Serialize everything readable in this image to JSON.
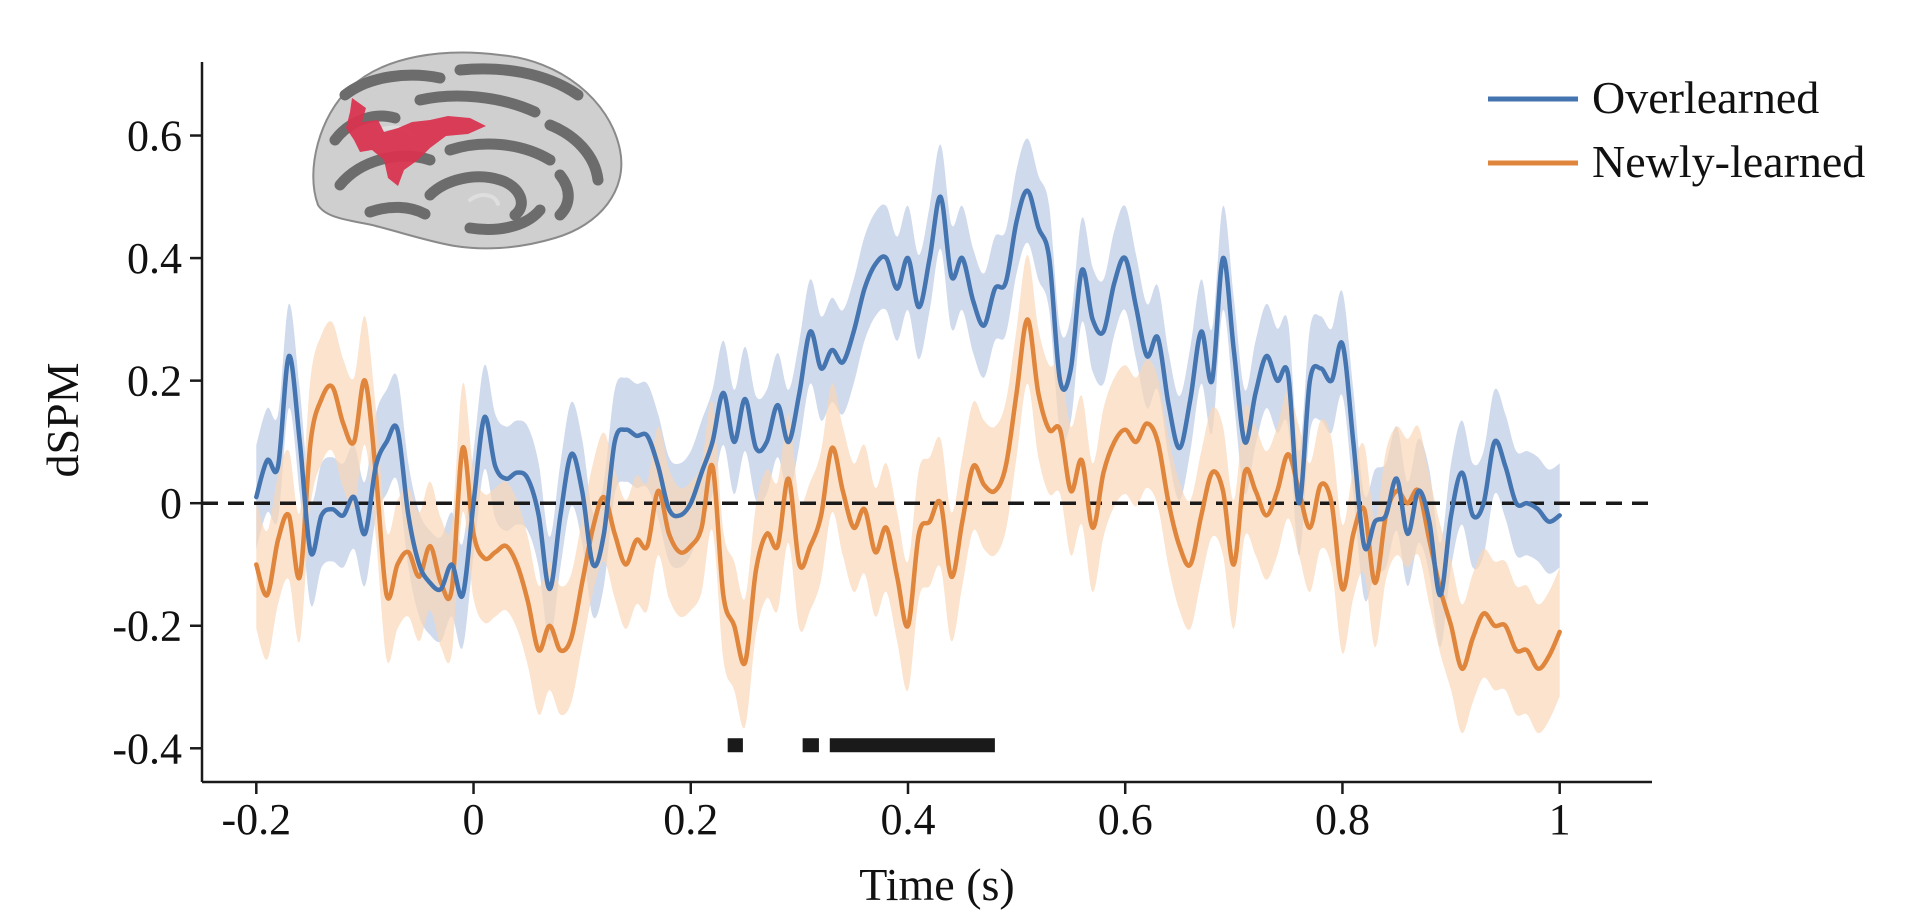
{
  "chart_data": {
    "type": "line",
    "title": "",
    "xlabel": "Time (s)",
    "ylabel": "dSPM",
    "xlim": [
      -0.25,
      1.085
    ],
    "ylim": [
      -0.455,
      0.72
    ],
    "x_ticks": [
      -0.2,
      0,
      0.2,
      0.4,
      0.6,
      0.8,
      1
    ],
    "x_tick_labels": [
      "-0.2",
      "0",
      "0.2",
      "0.4",
      "0.6",
      "0.8",
      "1"
    ],
    "y_ticks": [
      -0.4,
      -0.2,
      0,
      0.2,
      0.4,
      0.6
    ],
    "y_tick_labels": [
      "-0.4",
      "-0.2",
      "0",
      "0.2",
      "0.4",
      "0.6"
    ],
    "legend_position": "top-right",
    "reference_line": {
      "y": 0,
      "style": "dashed",
      "color": "#1a1a1a"
    },
    "series": [
      {
        "name": "Overlearned",
        "color": "#4475b0",
        "band_color": "#c8d3ea",
        "band_halfwidth": 0.085,
        "points": [
          [
            -0.2,
            0.01
          ],
          [
            -0.19,
            0.07
          ],
          [
            -0.18,
            0.06
          ],
          [
            -0.17,
            0.24
          ],
          [
            -0.16,
            0.1
          ],
          [
            -0.15,
            -0.08
          ],
          [
            -0.14,
            -0.02
          ],
          [
            -0.13,
            -0.01
          ],
          [
            -0.12,
            -0.02
          ],
          [
            -0.11,
            0.01
          ],
          [
            -0.1,
            -0.05
          ],
          [
            -0.09,
            0.06
          ],
          [
            -0.08,
            0.1
          ],
          [
            -0.07,
            0.12
          ],
          [
            -0.06,
            -0.02
          ],
          [
            -0.05,
            -0.1
          ],
          [
            -0.04,
            -0.13
          ],
          [
            -0.03,
            -0.14
          ],
          [
            -0.02,
            -0.1
          ],
          [
            -0.01,
            -0.15
          ],
          [
            0.0,
            0.0
          ],
          [
            0.01,
            0.14
          ],
          [
            0.02,
            0.06
          ],
          [
            0.03,
            0.04
          ],
          [
            0.04,
            0.05
          ],
          [
            0.05,
            0.04
          ],
          [
            0.06,
            -0.02
          ],
          [
            0.07,
            -0.14
          ],
          [
            0.08,
            -0.02
          ],
          [
            0.09,
            0.08
          ],
          [
            0.1,
            0.02
          ],
          [
            0.11,
            -0.1
          ],
          [
            0.12,
            -0.05
          ],
          [
            0.13,
            0.1
          ],
          [
            0.14,
            0.12
          ],
          [
            0.15,
            0.11
          ],
          [
            0.16,
            0.11
          ],
          [
            0.17,
            0.06
          ],
          [
            0.18,
            -0.01
          ],
          [
            0.19,
            -0.02
          ],
          [
            0.2,
            0.0
          ],
          [
            0.21,
            0.05
          ],
          [
            0.22,
            0.1
          ],
          [
            0.23,
            0.18
          ],
          [
            0.24,
            0.1
          ],
          [
            0.25,
            0.17
          ],
          [
            0.26,
            0.09
          ],
          [
            0.27,
            0.1
          ],
          [
            0.28,
            0.16
          ],
          [
            0.29,
            0.1
          ],
          [
            0.3,
            0.18
          ],
          [
            0.31,
            0.28
          ],
          [
            0.32,
            0.22
          ],
          [
            0.33,
            0.25
          ],
          [
            0.34,
            0.23
          ],
          [
            0.35,
            0.28
          ],
          [
            0.36,
            0.35
          ],
          [
            0.37,
            0.39
          ],
          [
            0.38,
            0.4
          ],
          [
            0.39,
            0.35
          ],
          [
            0.4,
            0.4
          ],
          [
            0.41,
            0.32
          ],
          [
            0.42,
            0.4
          ],
          [
            0.43,
            0.5
          ],
          [
            0.44,
            0.37
          ],
          [
            0.45,
            0.4
          ],
          [
            0.46,
            0.33
          ],
          [
            0.47,
            0.29
          ],
          [
            0.48,
            0.35
          ],
          [
            0.49,
            0.36
          ],
          [
            0.5,
            0.46
          ],
          [
            0.51,
            0.51
          ],
          [
            0.52,
            0.45
          ],
          [
            0.53,
            0.4
          ],
          [
            0.54,
            0.2
          ],
          [
            0.55,
            0.22
          ],
          [
            0.56,
            0.38
          ],
          [
            0.57,
            0.3
          ],
          [
            0.58,
            0.28
          ],
          [
            0.59,
            0.36
          ],
          [
            0.6,
            0.4
          ],
          [
            0.61,
            0.32
          ],
          [
            0.62,
            0.24
          ],
          [
            0.63,
            0.27
          ],
          [
            0.64,
            0.16
          ],
          [
            0.65,
            0.09
          ],
          [
            0.66,
            0.17
          ],
          [
            0.67,
            0.28
          ],
          [
            0.68,
            0.2
          ],
          [
            0.69,
            0.4
          ],
          [
            0.7,
            0.25
          ],
          [
            0.71,
            0.1
          ],
          [
            0.72,
            0.18
          ],
          [
            0.73,
            0.24
          ],
          [
            0.74,
            0.2
          ],
          [
            0.75,
            0.21
          ],
          [
            0.76,
            0.0
          ],
          [
            0.77,
            0.2
          ],
          [
            0.78,
            0.22
          ],
          [
            0.79,
            0.2
          ],
          [
            0.8,
            0.26
          ],
          [
            0.81,
            0.1
          ],
          [
            0.82,
            -0.07
          ],
          [
            0.83,
            -0.03
          ],
          [
            0.84,
            -0.02
          ],
          [
            0.85,
            0.04
          ],
          [
            0.86,
            -0.05
          ],
          [
            0.87,
            0.02
          ],
          [
            0.88,
            -0.03
          ],
          [
            0.89,
            -0.15
          ],
          [
            0.9,
            -0.02
          ],
          [
            0.91,
            0.05
          ],
          [
            0.92,
            -0.02
          ],
          [
            0.93,
            0.0
          ],
          [
            0.94,
            0.1
          ],
          [
            0.95,
            0.06
          ],
          [
            0.96,
            0.0
          ],
          [
            0.97,
            0.0
          ],
          [
            0.98,
            -0.01
          ],
          [
            0.99,
            -0.03
          ],
          [
            1.0,
            -0.02
          ]
        ]
      },
      {
        "name": "Newly-learned",
        "color": "#e0853c",
        "band_color": "#fad7b8",
        "band_halfwidth": 0.105,
        "points": [
          [
            -0.2,
            -0.1
          ],
          [
            -0.19,
            -0.15
          ],
          [
            -0.18,
            -0.06
          ],
          [
            -0.17,
            -0.02
          ],
          [
            -0.16,
            -0.12
          ],
          [
            -0.15,
            0.1
          ],
          [
            -0.14,
            0.17
          ],
          [
            -0.13,
            0.19
          ],
          [
            -0.12,
            0.13
          ],
          [
            -0.11,
            0.1
          ],
          [
            -0.1,
            0.2
          ],
          [
            -0.09,
            0.05
          ],
          [
            -0.08,
            -0.15
          ],
          [
            -0.07,
            -0.1
          ],
          [
            -0.06,
            -0.08
          ],
          [
            -0.05,
            -0.12
          ],
          [
            -0.04,
            -0.07
          ],
          [
            -0.03,
            -0.13
          ],
          [
            -0.02,
            -0.14
          ],
          [
            -0.01,
            0.09
          ],
          [
            0.0,
            -0.05
          ],
          [
            0.01,
            -0.09
          ],
          [
            0.02,
            -0.08
          ],
          [
            0.03,
            -0.07
          ],
          [
            0.04,
            -0.1
          ],
          [
            0.05,
            -0.16
          ],
          [
            0.06,
            -0.24
          ],
          [
            0.07,
            -0.2
          ],
          [
            0.08,
            -0.24
          ],
          [
            0.09,
            -0.22
          ],
          [
            0.1,
            -0.13
          ],
          [
            0.11,
            -0.04
          ],
          [
            0.12,
            0.01
          ],
          [
            0.13,
            -0.05
          ],
          [
            0.14,
            -0.1
          ],
          [
            0.15,
            -0.06
          ],
          [
            0.16,
            -0.07
          ],
          [
            0.17,
            0.02
          ],
          [
            0.18,
            -0.05
          ],
          [
            0.19,
            -0.08
          ],
          [
            0.2,
            -0.07
          ],
          [
            0.21,
            -0.04
          ],
          [
            0.22,
            0.06
          ],
          [
            0.23,
            -0.15
          ],
          [
            0.24,
            -0.2
          ],
          [
            0.25,
            -0.26
          ],
          [
            0.26,
            -0.11
          ],
          [
            0.27,
            -0.05
          ],
          [
            0.28,
            -0.07
          ],
          [
            0.29,
            0.04
          ],
          [
            0.3,
            -0.1
          ],
          [
            0.31,
            -0.07
          ],
          [
            0.32,
            -0.02
          ],
          [
            0.33,
            0.09
          ],
          [
            0.34,
            0.02
          ],
          [
            0.35,
            -0.04
          ],
          [
            0.36,
            -0.01
          ],
          [
            0.37,
            -0.08
          ],
          [
            0.38,
            -0.04
          ],
          [
            0.39,
            -0.12
          ],
          [
            0.4,
            -0.2
          ],
          [
            0.41,
            -0.05
          ],
          [
            0.42,
            -0.03
          ],
          [
            0.43,
            0.0
          ],
          [
            0.44,
            -0.12
          ],
          [
            0.45,
            -0.03
          ],
          [
            0.46,
            0.06
          ],
          [
            0.47,
            0.03
          ],
          [
            0.48,
            0.02
          ],
          [
            0.49,
            0.06
          ],
          [
            0.5,
            0.18
          ],
          [
            0.51,
            0.3
          ],
          [
            0.52,
            0.18
          ],
          [
            0.53,
            0.12
          ],
          [
            0.54,
            0.12
          ],
          [
            0.55,
            0.02
          ],
          [
            0.56,
            0.07
          ],
          [
            0.57,
            -0.04
          ],
          [
            0.58,
            0.05
          ],
          [
            0.59,
            0.1
          ],
          [
            0.6,
            0.12
          ],
          [
            0.61,
            0.1
          ],
          [
            0.62,
            0.13
          ],
          [
            0.63,
            0.1
          ],
          [
            0.64,
            0.0
          ],
          [
            0.65,
            -0.07
          ],
          [
            0.66,
            -0.1
          ],
          [
            0.67,
            -0.02
          ],
          [
            0.68,
            0.05
          ],
          [
            0.69,
            0.02
          ],
          [
            0.7,
            -0.1
          ],
          [
            0.71,
            0.05
          ],
          [
            0.72,
            0.02
          ],
          [
            0.73,
            -0.02
          ],
          [
            0.74,
            0.02
          ],
          [
            0.75,
            0.08
          ],
          [
            0.76,
            0.02
          ],
          [
            0.77,
            -0.04
          ],
          [
            0.78,
            0.03
          ],
          [
            0.79,
            0.0
          ],
          [
            0.8,
            -0.14
          ],
          [
            0.81,
            -0.05
          ],
          [
            0.82,
            -0.01
          ],
          [
            0.83,
            -0.13
          ],
          [
            0.84,
            -0.02
          ],
          [
            0.85,
            0.02
          ],
          [
            0.86,
            0.0
          ],
          [
            0.87,
            0.02
          ],
          [
            0.88,
            -0.06
          ],
          [
            0.89,
            -0.14
          ],
          [
            0.9,
            -0.2
          ],
          [
            0.91,
            -0.27
          ],
          [
            0.92,
            -0.22
          ],
          [
            0.93,
            -0.18
          ],
          [
            0.94,
            -0.2
          ],
          [
            0.95,
            -0.2
          ],
          [
            0.96,
            -0.24
          ],
          [
            0.97,
            -0.24
          ],
          [
            0.98,
            -0.27
          ],
          [
            0.99,
            -0.25
          ],
          [
            1.0,
            -0.21
          ]
        ]
      }
    ],
    "significance_bars": [
      {
        "start": 0.234,
        "end": 0.248,
        "y": -0.395
      },
      {
        "start": 0.303,
        "end": 0.318,
        "y": -0.395
      },
      {
        "start": 0.328,
        "end": 0.48,
        "y": -0.395
      }
    ],
    "significance_color": "#1a1a1a"
  },
  "inset": {
    "name": "brain-surface",
    "region_color": "#d9344f",
    "gyri_color": "#cfcfcf",
    "sulci_color": "#6c6c6c"
  }
}
